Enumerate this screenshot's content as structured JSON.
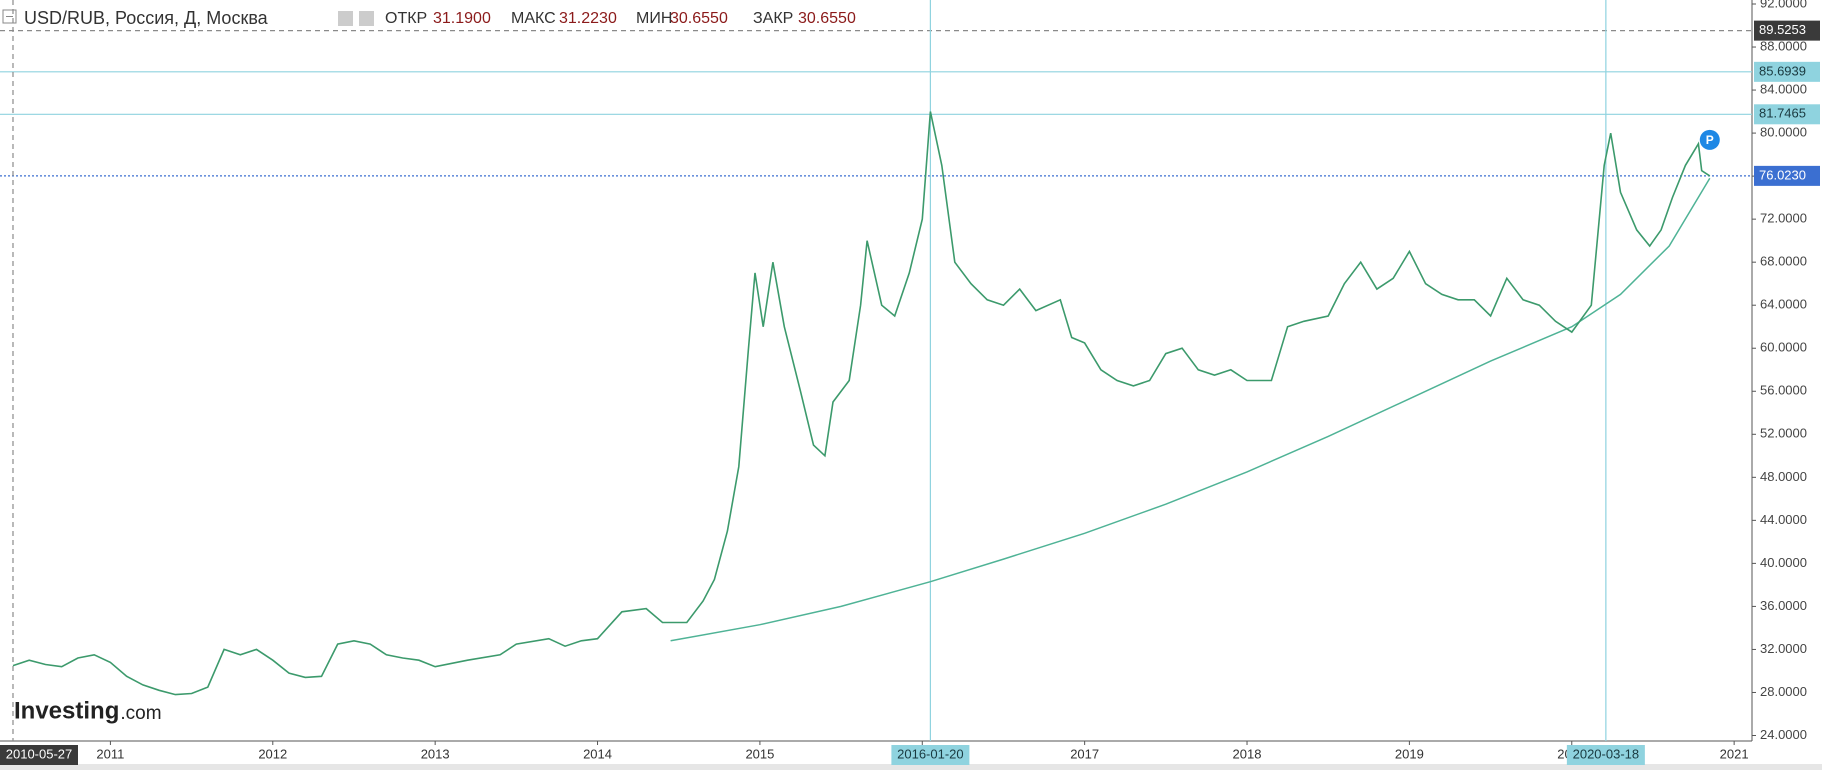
{
  "chart_data": {
    "type": "line",
    "title": "USD/RUB, Россия, Д, Москва",
    "ohlc": [
      {
        "label": "ОТКР",
        "text": "31.1900"
      },
      {
        "label": "МАКС",
        "text": "31.2230"
      },
      {
        "label": "МИН",
        "text": "30.6550"
      },
      {
        "label": "ЗАКР",
        "text": "30.6550"
      }
    ],
    "logo": [
      "Investing",
      ".com"
    ],
    "marker_label": "P",
    "color": "#3c9a6c",
    "x": [
      2010.4,
      2010.5,
      2010.6,
      2010.7,
      2010.8,
      2010.9,
      2011.0,
      2011.1,
      2011.2,
      2011.3,
      2011.4,
      2011.5,
      2011.6,
      2011.7,
      2011.8,
      2011.9,
      2012.0,
      2012.1,
      2012.2,
      2012.3,
      2012.4,
      2012.5,
      2012.6,
      2012.7,
      2012.8,
      2012.9,
      2013.0,
      2013.2,
      2013.4,
      2013.5,
      2013.7,
      2013.8,
      2013.9,
      2014.0,
      2014.15,
      2014.3,
      2014.4,
      2014.55,
      2014.65,
      2014.72,
      2014.8,
      2014.87,
      2014.93,
      2014.97,
      2015.02,
      2015.08,
      2015.15,
      2015.25,
      2015.33,
      2015.4,
      2015.45,
      2015.55,
      2015.62,
      2015.66,
      2015.75,
      2015.83,
      2015.92,
      2016.0,
      2016.05,
      2016.12,
      2016.2,
      2016.3,
      2016.4,
      2016.5,
      2016.6,
      2016.7,
      2016.85,
      2016.92,
      2017.0,
      2017.1,
      2017.2,
      2017.3,
      2017.4,
      2017.5,
      2017.6,
      2017.7,
      2017.8,
      2017.9,
      2018.0,
      2018.15,
      2018.25,
      2018.35,
      2018.5,
      2018.6,
      2018.7,
      2018.8,
      2018.9,
      2019.0,
      2019.1,
      2019.2,
      2019.3,
      2019.4,
      2019.5,
      2019.6,
      2019.7,
      2019.8,
      2019.9,
      2020.0,
      2020.12,
      2020.2,
      2020.24,
      2020.3,
      2020.4,
      2020.48,
      2020.55,
      2020.62,
      2020.7,
      2020.78,
      2020.8,
      2020.85
    ],
    "values": [
      30.5,
      31,
      30.6,
      30.4,
      31.2,
      31.5,
      30.8,
      29.5,
      28.7,
      28.2,
      27.8,
      27.9,
      28.5,
      32.0,
      31.5,
      32.0,
      31.0,
      29.8,
      29.4,
      29.5,
      32.5,
      32.8,
      32.5,
      31.5,
      31.2,
      31.0,
      30.4,
      31,
      31.5,
      32.5,
      33,
      32.3,
      32.8,
      33,
      35.5,
      35.8,
      34.5,
      34.5,
      36.5,
      38.5,
      43,
      49,
      60,
      67,
      62,
      68,
      62,
      56,
      51,
      50,
      55,
      57,
      64,
      70,
      64,
      63,
      67,
      72,
      82,
      77,
      68,
      66,
      64.5,
      64,
      65.5,
      63.5,
      64.5,
      61,
      60.5,
      58,
      57,
      56.5,
      57,
      59.5,
      60,
      58,
      57.5,
      58,
      57,
      57,
      62,
      62.5,
      63,
      66,
      68,
      65.5,
      66.5,
      69,
      66,
      65,
      64.5,
      64.5,
      63,
      66.5,
      64.5,
      64,
      62.5,
      61.5,
      64,
      77,
      80,
      74.5,
      71,
      69.5,
      71,
      74,
      77,
      79,
      76.5,
      76.023
    ],
    "trend": {
      "color": "#4fb396",
      "x": [
        2014.45,
        2015.0,
        2015.5,
        2016.05,
        2016.5,
        2017.0,
        2017.5,
        2018.0,
        2018.5,
        2019.0,
        2019.5,
        2020.0,
        2020.3,
        2020.6,
        2020.85
      ],
      "values": [
        32.8,
        34.3,
        36,
        38.3,
        40.4,
        42.8,
        45.5,
        48.5,
        51.8,
        55.3,
        58.8,
        62,
        65,
        69.5,
        75.8
      ]
    },
    "xlim": [
      2010.32,
      2021.11
    ],
    "xticks": [
      2011,
      2012,
      2013,
      2014,
      2015,
      2016,
      2017,
      2018,
      2019,
      2020,
      2021
    ],
    "ylim": [
      24,
      92
    ],
    "yticks": [
      {
        "value": 24,
        "label": "24.0000"
      },
      {
        "value": 28,
        "label": "28.0000"
      },
      {
        "value": 32,
        "label": "32.0000"
      },
      {
        "value": 36,
        "label": "36.0000"
      },
      {
        "value": 40,
        "label": "40.0000"
      },
      {
        "value": 44,
        "label": "44.0000"
      },
      {
        "value": 48,
        "label": "48.0000"
      },
      {
        "value": 52,
        "label": "52.0000"
      },
      {
        "value": 56,
        "label": "56.0000"
      },
      {
        "value": 60,
        "label": "60.0000"
      },
      {
        "value": 64,
        "label": "64.0000"
      },
      {
        "value": 68,
        "label": "68.0000"
      },
      {
        "value": 72,
        "label": "72.0000"
      },
      {
        "value": 76,
        "label": "76.0000"
      },
      {
        "value": 80,
        "label": "80.0000"
      },
      {
        "value": 84,
        "label": "84.0000"
      },
      {
        "value": 88,
        "label": "88.0000"
      },
      {
        "value": 92,
        "label": "92.0000"
      }
    ],
    "hlines": [
      {
        "value": 89.5253,
        "label": "89.5253",
        "color": "#8a8a8a",
        "label_bg": "#3a3a3a",
        "style": "dashed"
      },
      {
        "value": 85.6939,
        "label": "85.6939",
        "color": "#8fd3df",
        "label_bg": "#8fd3df",
        "style": "solid"
      },
      {
        "value": 81.7465,
        "label": "81.7465",
        "color": "#8fd3df",
        "label_bg": "#8fd3df",
        "style": "solid"
      },
      {
        "value": 76.023,
        "label": "76.0230",
        "color": "#3b6fd1",
        "label_bg": "#3b6fd1",
        "style": "dotted"
      }
    ],
    "vlines": [
      {
        "value": 2010.4,
        "label": "2010-05-27",
        "color": "#8a8a8a",
        "label_bg": "#3a3a3a",
        "style": "dashed"
      },
      {
        "value": 2016.05,
        "label": "2016-01-20",
        "color": "#8fd3df",
        "label_bg": "#8fd3df",
        "style": "solid"
      },
      {
        "value": 2020.21,
        "label": "2020-03-18",
        "color": "#8fd3df",
        "label_bg": "#8fd3df",
        "style": "solid"
      }
    ]
  }
}
